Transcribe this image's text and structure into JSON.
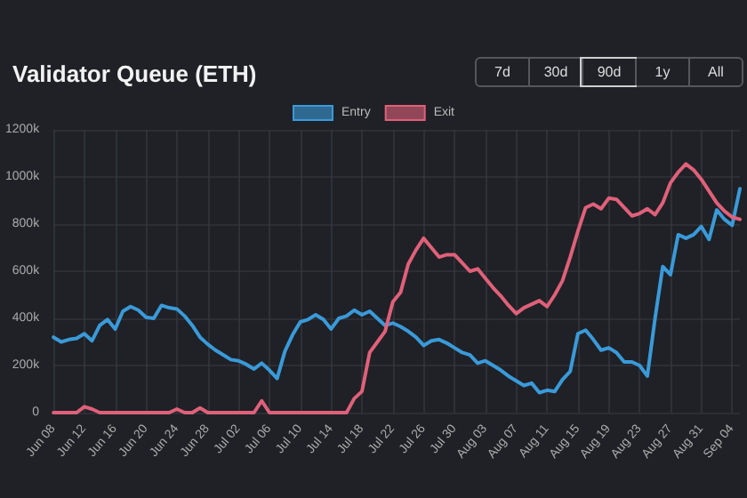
{
  "chart_data": {
    "type": "line",
    "title": "Validator Queue (ETH)",
    "annotations": [
      "7d",
      "30d",
      "90d",
      "1y",
      "All"
    ],
    "categories": [
      "Jun 08",
      null,
      null,
      null,
      "Jun 12",
      null,
      null,
      null,
      "Jun 16",
      null,
      null,
      null,
      "Jun 20",
      null,
      null,
      null,
      "Jun 24",
      null,
      null,
      null,
      "Jun 28",
      null,
      null,
      null,
      "Jul 02",
      null,
      null,
      null,
      "Jul 06",
      null,
      null,
      null,
      "Jul 10",
      null,
      null,
      null,
      "Jul 14",
      null,
      null,
      null,
      "Jul 18",
      null,
      null,
      null,
      "Jul 22",
      null,
      null,
      null,
      "Jul 26",
      null,
      null,
      null,
      "Jul 30",
      null,
      null,
      null,
      "Aug 03",
      null,
      null,
      null,
      "Aug 07",
      null,
      null,
      null,
      "Aug 11",
      null,
      null,
      null,
      "Aug 15",
      null,
      null,
      null,
      "Aug 19",
      null,
      null,
      null,
      "Aug 23",
      null,
      null,
      null,
      "Aug 27",
      null,
      null,
      null,
      "Aug 31",
      null,
      null,
      null,
      "Sep 04",
      null
    ],
    "series": [
      {
        "name": "Entry",
        "color": "#3a9ad9",
        "values": [
          320,
          300,
          310,
          315,
          335,
          305,
          370,
          395,
          355,
          430,
          450,
          435,
          405,
          400,
          455,
          445,
          440,
          410,
          370,
          320,
          290,
          265,
          245,
          225,
          220,
          205,
          185,
          210,
          180,
          145,
          260,
          330,
          385,
          395,
          415,
          395,
          355,
          400,
          410,
          435,
          415,
          430,
          400,
          370,
          380,
          365,
          345,
          320,
          285,
          305,
          310,
          295,
          275,
          255,
          245,
          210,
          220,
          200,
          180,
          155,
          135,
          115,
          125,
          85,
          95,
          90,
          140,
          175,
          335,
          350,
          310,
          265,
          275,
          255,
          215,
          215,
          200,
          155,
          400,
          620,
          585,
          755,
          740,
          755,
          790,
          735,
          860,
          820,
          795,
          950
        ]
      },
      {
        "name": "Exit",
        "color": "#e0607a",
        "values": [
          0,
          0,
          0,
          0,
          25,
          15,
          0,
          0,
          0,
          0,
          0,
          0,
          0,
          0,
          0,
          0,
          15,
          0,
          0,
          20,
          0,
          0,
          0,
          0,
          0,
          0,
          0,
          50,
          0,
          0,
          0,
          0,
          0,
          0,
          0,
          0,
          0,
          0,
          0,
          60,
          90,
          255,
          300,
          345,
          470,
          510,
          630,
          690,
          740,
          700,
          660,
          670,
          670,
          635,
          600,
          610,
          570,
          530,
          495,
          455,
          420,
          445,
          460,
          475,
          450,
          500,
          560,
          660,
          770,
          870,
          885,
          865,
          910,
          905,
          870,
          835,
          845,
          865,
          840,
          890,
          975,
          1020,
          1055,
          1030,
          990,
          940,
          890,
          855,
          830,
          820
        ]
      }
    ],
    "ylim": [
      0,
      1200
    ],
    "yticks": [
      {
        "value": 0,
        "label": "0"
      },
      {
        "value": 200,
        "label": "200k"
      },
      {
        "value": 400,
        "label": "400k"
      },
      {
        "value": 600,
        "label": "600k"
      },
      {
        "value": 800,
        "label": "800k"
      },
      {
        "value": 1000,
        "label": "1000k"
      },
      {
        "value": 1200,
        "label": "1200k"
      }
    ],
    "grid": true,
    "legend": "top",
    "marker": "none",
    "line_style": "solid"
  }
}
